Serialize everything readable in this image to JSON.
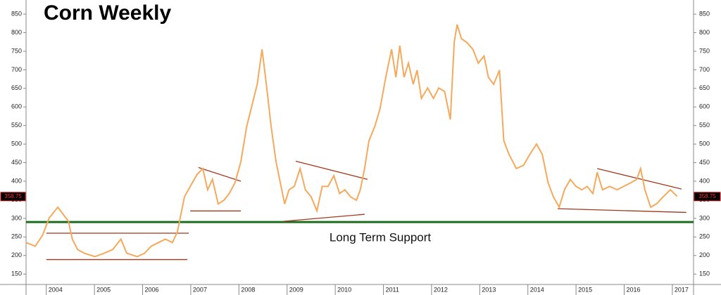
{
  "chart_data": {
    "type": "line",
    "title": "Corn Weekly",
    "annotation": "Long Term Support",
    "xlim": [
      2003.58,
      2017.44
    ],
    "xticks": [
      2004,
      2005,
      2006,
      2007,
      2008,
      2009,
      2010,
      2011,
      2012,
      2013,
      2014,
      2015,
      2016,
      2017
    ],
    "ylim": [
      122,
      888
    ],
    "yticks": [
      150,
      200,
      250,
      300,
      350,
      400,
      450,
      500,
      550,
      600,
      650,
      700,
      750,
      800,
      850
    ],
    "grid": false,
    "last_value": 358.75,
    "support": {
      "value": 290,
      "color": "#1e6b1e"
    },
    "trendline_color": "#a0391e",
    "trendlines": [
      {
        "x": [
          2004.0,
          2006.96
        ],
        "y": [
          260,
          260
        ]
      },
      {
        "x": [
          2004.0,
          2006.93
        ],
        "y": [
          189,
          189
        ]
      },
      {
        "x": [
          2006.99,
          2008.04
        ],
        "y": [
          320,
          320
        ]
      },
      {
        "x": [
          2007.16,
          2008.04
        ],
        "y": [
          437,
          400
        ]
      },
      {
        "x": [
          2009.18,
          2010.67
        ],
        "y": [
          454,
          405
        ]
      },
      {
        "x": [
          2008.92,
          2010.61
        ],
        "y": [
          292,
          311
        ]
      },
      {
        "x": [
          2015.44,
          2017.19
        ],
        "y": [
          434,
          379
        ]
      },
      {
        "x": [
          2014.62,
          2017.29
        ],
        "y": [
          326,
          316
        ]
      }
    ],
    "series": [
      {
        "color": "#f5a95c",
        "x": [
          2003.58,
          2003.77,
          2003.92,
          2004.06,
          2004.24,
          2004.35,
          2004.46,
          2004.54,
          2004.65,
          2004.79,
          2005.01,
          2005.2,
          2005.38,
          2005.55,
          2005.67,
          2005.89,
          2006.04,
          2006.18,
          2006.33,
          2006.47,
          2006.62,
          2006.72,
          2006.81,
          2006.87,
          2006.99,
          2007.13,
          2007.25,
          2007.35,
          2007.45,
          2007.57,
          2007.69,
          2007.8,
          2007.92,
          2008.04,
          2008.16,
          2008.27,
          2008.38,
          2008.48,
          2008.57,
          2008.67,
          2008.77,
          2008.86,
          2008.95,
          2009.04,
          2009.15,
          2009.27,
          2009.38,
          2009.5,
          2009.62,
          2009.73,
          2009.85,
          2009.97,
          2010.09,
          2010.2,
          2010.32,
          2010.44,
          2010.52,
          2010.61,
          2010.7,
          2010.82,
          2010.93,
          2011.05,
          2011.17,
          2011.26,
          2011.34,
          2011.43,
          2011.52,
          2011.62,
          2011.7,
          2011.79,
          2011.92,
          2012.04,
          2012.15,
          2012.27,
          2012.39,
          2012.47,
          2012.53,
          2012.62,
          2012.73,
          2012.86,
          2012.97,
          2013.09,
          2013.18,
          2013.29,
          2013.41,
          2013.5,
          2013.61,
          2013.76,
          2013.91,
          2014.04,
          2014.18,
          2014.3,
          2014.42,
          2014.53,
          2014.65,
          2014.76,
          2014.88,
          2015.0,
          2015.12,
          2015.23,
          2015.35,
          2015.44,
          2015.55,
          2015.7,
          2015.85,
          2015.99,
          2016.14,
          2016.26,
          2016.34,
          2016.43,
          2016.55,
          2016.67,
          2016.81,
          2016.96,
          2017.1
        ],
        "values": [
          235,
          225,
          254,
          301,
          330,
          311,
          292,
          244,
          216,
          206,
          197,
          206,
          216,
          244,
          206,
          197,
          206,
          225,
          235,
          244,
          235,
          263,
          320,
          358,
          386,
          418,
          434,
          377,
          405,
          339,
          349,
          367,
          396,
          453,
          547,
          604,
          661,
          755,
          661,
          547,
          453,
          396,
          339,
          377,
          386,
          434,
          377,
          358,
          320,
          386,
          386,
          415,
          367,
          377,
          358,
          349,
          377,
          434,
          509,
          547,
          595,
          680,
          755,
          680,
          765,
          680,
          718,
          661,
          699,
          623,
          651,
          623,
          651,
          642,
          566,
          774,
          822,
          784,
          774,
          755,
          718,
          737,
          680,
          661,
          699,
          509,
          472,
          434,
          443,
          472,
          500,
          472,
          396,
          358,
          330,
          377,
          405,
          386,
          377,
          386,
          367,
          424,
          377,
          386,
          377,
          386,
          396,
          405,
          434,
          377,
          330,
          339,
          358,
          377,
          359
        ]
      }
    ]
  }
}
